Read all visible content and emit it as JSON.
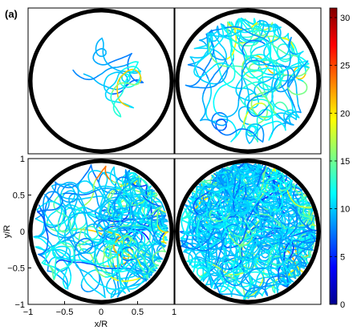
{
  "figure": {
    "panel_label": "(a)"
  },
  "chart_data": [
    {
      "type": "line",
      "panel": "top-left",
      "trajectory_density": "sparse",
      "xlim": [
        -1,
        1
      ],
      "ylim": [
        -1,
        1
      ],
      "x_ticks_shown": false,
      "y_ticks_shown": false,
      "boundary": "circle r/R = 1"
    },
    {
      "type": "line",
      "panel": "top-right",
      "trajectory_density": "medium",
      "xlim": [
        -1,
        1
      ],
      "ylim": [
        -1,
        1
      ],
      "x_ticks_shown": false,
      "y_ticks_shown": false,
      "boundary": "circle r/R = 1"
    },
    {
      "type": "line",
      "panel": "bottom-left",
      "trajectory_density": "dense",
      "xlabel": "x/R",
      "ylabel": "y/R",
      "xlim": [
        -1,
        1
      ],
      "ylim": [
        -1,
        1
      ],
      "xticks": [
        -1,
        -0.5,
        0,
        0.5,
        1
      ],
      "yticks": [
        -1,
        -0.5,
        0,
        0.5,
        1
      ],
      "xtick_labels": [
        "−1",
        "−0.5",
        "0",
        "0.5",
        "1"
      ],
      "ytick_labels": [
        "−1",
        "−0.5",
        "0",
        "0.5",
        "1"
      ],
      "boundary": "circle r/R = 1"
    },
    {
      "type": "line",
      "panel": "bottom-right",
      "trajectory_density": "very dense",
      "xlim": [
        -1,
        1
      ],
      "ylim": [
        -1,
        1
      ],
      "x_ticks_shown": false,
      "y_ticks_shown": false,
      "boundary": "circle r/R = 1"
    }
  ],
  "colorbar": {
    "colormap": "jet",
    "min": 0,
    "max": 31,
    "ticks": [
      0,
      5,
      10,
      15,
      20,
      25,
      30
    ],
    "tick_labels": [
      "0",
      "5",
      "10",
      "15",
      "20",
      "25",
      "30"
    ],
    "colors": [
      "#00008f",
      "#0000ff",
      "#00ffff",
      "#ffff00",
      "#ff0000",
      "#800000"
    ]
  }
}
